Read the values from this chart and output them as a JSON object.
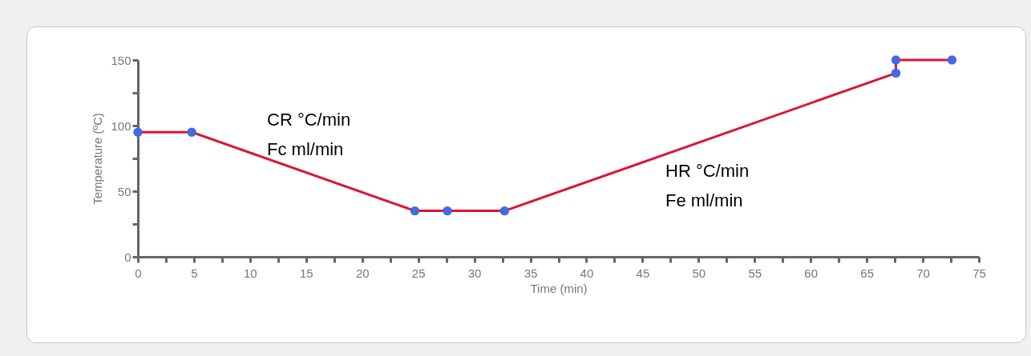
{
  "chart_data": {
    "type": "line",
    "xlabel": "Time (min)",
    "ylabel": "Temperature (ºC)",
    "x": [
      0,
      4.8,
      24.7,
      27.6,
      32.7,
      67.6,
      67.6,
      72.6
    ],
    "series": [
      {
        "type": "line",
        "color": "#dc1438",
        "values": [
          95,
          95,
          35,
          35,
          35,
          140,
          150,
          150
        ],
        "marker": "none"
      },
      {
        "type": "scatter",
        "color": "#4169e1",
        "values": [
          95,
          95,
          35,
          35,
          35,
          140,
          150,
          150
        ],
        "marker": "circle"
      }
    ],
    "xlim": [
      0,
      75
    ],
    "ylim": [
      0,
      150
    ],
    "xticks": [
      0,
      {
        "value": 2.5,
        "label": null
      },
      5,
      {
        "value": 7.5,
        "label": null
      },
      10,
      {
        "value": 12.5,
        "label": null
      },
      15,
      {
        "value": 17.5,
        "label": null
      },
      20,
      {
        "value": 22.5,
        "label": null
      },
      25,
      {
        "value": 27.5,
        "label": null
      },
      30,
      {
        "value": 32.5,
        "label": null
      },
      35,
      {
        "value": 37.5,
        "label": null
      },
      40,
      {
        "value": 42.5,
        "label": null
      },
      45,
      {
        "value": 47.5,
        "label": null
      },
      50,
      {
        "value": 52.5,
        "label": null
      },
      55,
      {
        "value": 57.5,
        "label": null
      },
      60,
      {
        "value": 62.5,
        "label": null
      },
      65,
      {
        "value": 67.5,
        "label": null
      },
      70,
      {
        "value": 72.5,
        "label": null
      },
      75
    ],
    "yticks": [
      0,
      {
        "value": 25,
        "label": null
      },
      50,
      {
        "value": 75,
        "label": null
      },
      100,
      {
        "value": 125,
        "label": null
      },
      150
    ],
    "grid": false,
    "annotations": [
      "CR °C/min",
      "Fc ml/min",
      "HR °C/min",
      "Fe ml/min"
    ]
  }
}
